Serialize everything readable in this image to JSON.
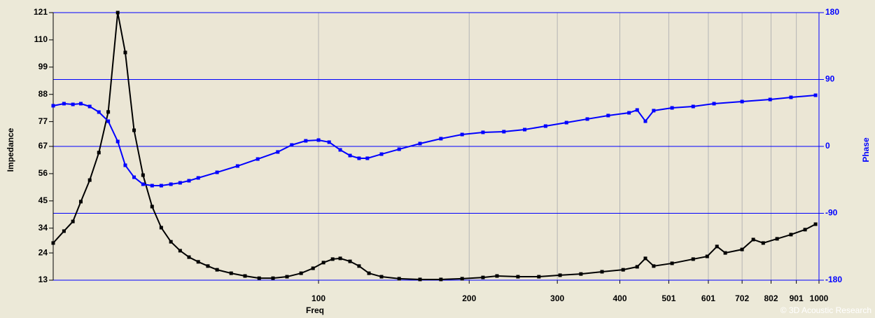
{
  "chart_data": {
    "type": "line",
    "xlabel": "Freq",
    "ylabel": "Impedance",
    "y2label": "Phase",
    "watermark": "© 3D Acoustic Research",
    "xscale": "log",
    "xlim": [
      29.5,
      1000
    ],
    "xticks": [
      100,
      200,
      300,
      400,
      501,
      601,
      702,
      802,
      901,
      1000
    ],
    "ylim": [
      13,
      121
    ],
    "yticks": [
      13,
      24,
      34,
      45,
      56,
      67,
      77,
      88,
      99,
      110,
      121
    ],
    "y2lim": [
      -180,
      180
    ],
    "y2ticks": [
      -180,
      -90,
      0,
      90,
      180
    ],
    "xgrid": true,
    "y2grid": true,
    "series": [
      {
        "name": "Impedance",
        "color": "#000000",
        "axis": "y",
        "x": [
          29.5,
          31.0,
          32.3,
          33.5,
          34.9,
          36.4,
          38.0,
          39.7,
          41.1,
          42.8,
          44.6,
          46.5,
          48.5,
          50.7,
          52.9,
          55.1,
          57.5,
          60.1,
          62.7,
          66.9,
          71.3,
          76.1,
          81.1,
          86.5,
          92.3,
          97.5,
          102.3,
          106.7,
          110.5,
          115.6,
          120.5,
          126.1,
          133.6,
          144.9,
          159.5,
          175.6,
          193.6,
          213.1,
          227.3,
          250.3,
          275.6,
          303.8,
          334.4,
          368.5,
          406.1,
          433.2,
          449.9,
          467.4,
          508.6,
          560.5,
          597.9,
          625.3,
          649.7,
          701.9,
          739.1,
          773.6,
          824.6,
          879.0,
          937.9,
          984.3
        ],
        "values": [
          28.0,
          32.8,
          36.7,
          44.7,
          53.4,
          64.5,
          80.9,
          121.0,
          104.9,
          73.5,
          55.4,
          42.7,
          34.2,
          28.5,
          24.9,
          22.3,
          20.4,
          18.7,
          17.2,
          15.8,
          14.7,
          13.8,
          13.8,
          14.4,
          15.8,
          17.8,
          20.1,
          21.5,
          21.8,
          20.6,
          18.7,
          15.8,
          14.4,
          13.6,
          13.3,
          13.3,
          13.6,
          14.1,
          14.7,
          14.4,
          14.4,
          15.0,
          15.5,
          16.4,
          17.2,
          18.4,
          21.8,
          18.7,
          19.8,
          21.5,
          22.6,
          26.6,
          24.0,
          25.4,
          29.4,
          28.0,
          29.7,
          31.4,
          33.4,
          35.6
        ]
      },
      {
        "name": "Phase",
        "color": "#0000ff",
        "axis": "y2",
        "x": [
          29.5,
          31.0,
          32.3,
          33.5,
          34.9,
          36.4,
          38.0,
          39.7,
          41.1,
          42.8,
          44.6,
          46.5,
          48.5,
          50.7,
          52.9,
          55.1,
          57.5,
          62.7,
          68.9,
          75.6,
          82.9,
          88.4,
          94.3,
          100.0,
          105.0,
          110.5,
          115.6,
          120.5,
          125.2,
          133.6,
          144.9,
          159.5,
          175.6,
          193.6,
          213.1,
          234.6,
          258.2,
          284.2,
          312.9,
          344.4,
          379.1,
          417.3,
          433.2,
          449.9,
          467.4,
          508.6,
          560.5,
          616.9,
          701.9,
          798.7,
          879.0,
          984.3
        ],
        "values": [
          54.7,
          57.5,
          56.5,
          57.5,
          53.7,
          46.2,
          33.9,
          6.6,
          -25.4,
          -41.5,
          -50.9,
          -52.8,
          -52.8,
          -50.9,
          -49.0,
          -46.2,
          -42.4,
          -34.9,
          -26.4,
          -17.0,
          -7.5,
          1.9,
          7.5,
          8.5,
          5.7,
          -4.7,
          -12.3,
          -16.0,
          -16.0,
          -10.4,
          -3.8,
          3.8,
          10.4,
          16.0,
          18.9,
          19.8,
          22.6,
          27.3,
          32.0,
          36.8,
          41.5,
          45.2,
          49.0,
          33.9,
          48.1,
          51.8,
          53.7,
          57.5,
          60.3,
          63.1,
          66.0,
          68.8
        ]
      }
    ]
  }
}
